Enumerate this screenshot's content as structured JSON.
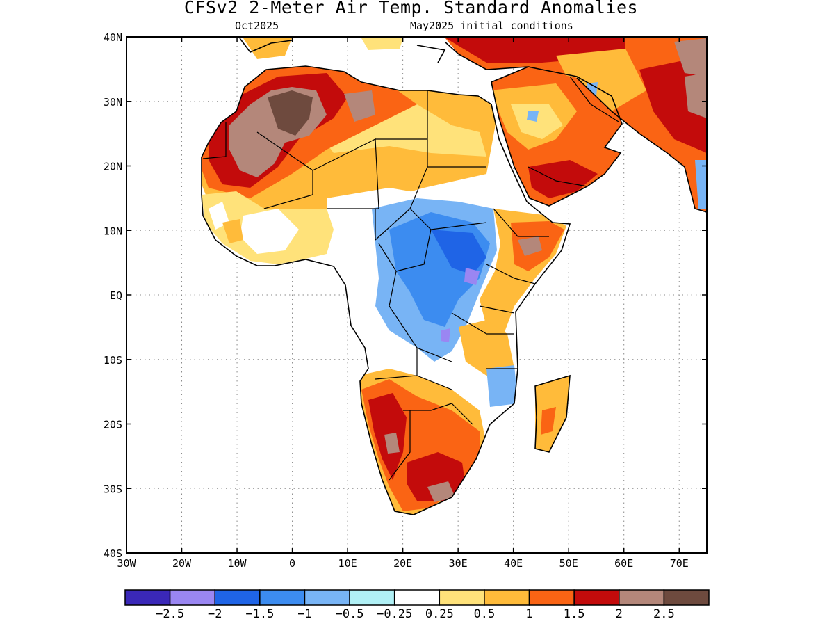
{
  "header": {
    "title": "CFSv2 2-Meter Air Temp. Standard Anomalies",
    "valid_month": "Oct2025",
    "initial_conditions": "May2025 initial conditions"
  },
  "map": {
    "region": "Africa",
    "lon_range": [
      -30,
      75
    ],
    "lat_range": [
      -40,
      40
    ],
    "lon_ticks": [
      {
        "value": -30,
        "label": "30W"
      },
      {
        "value": -20,
        "label": "20W"
      },
      {
        "value": -10,
        "label": "10W"
      },
      {
        "value": 0,
        "label": "0"
      },
      {
        "value": 10,
        "label": "10E"
      },
      {
        "value": 20,
        "label": "20E"
      },
      {
        "value": 30,
        "label": "30E"
      },
      {
        "value": 40,
        "label": "40E"
      },
      {
        "value": 50,
        "label": "50E"
      },
      {
        "value": 60,
        "label": "60E"
      },
      {
        "value": 70,
        "label": "70E"
      }
    ],
    "lat_ticks": [
      {
        "value": 40,
        "label": "40N"
      },
      {
        "value": 30,
        "label": "30N"
      },
      {
        "value": 20,
        "label": "20N"
      },
      {
        "value": 10,
        "label": "10N"
      },
      {
        "value": 0,
        "label": "EQ"
      },
      {
        "value": -10,
        "label": "10S"
      },
      {
        "value": -20,
        "label": "20S"
      },
      {
        "value": -30,
        "label": "30S"
      },
      {
        "value": -40,
        "label": "40S"
      }
    ],
    "grid": true
  },
  "legend": {
    "colors": [
      "#3a28b8",
      "#9a86f2",
      "#1f64e6",
      "#3c8cf0",
      "#78b4f5",
      "#b0f0f5",
      "#ffffff",
      "#ffe27a",
      "#ffbb3a",
      "#fa6414",
      "#c30b0b",
      "#b4877a",
      "#6e4a3e"
    ],
    "labels": [
      "-2.5",
      "-2",
      "-1.5",
      "-1",
      "-0.5",
      "-0.25",
      "0.25",
      "0.5",
      "1",
      "1.5",
      "2",
      "2.5"
    ]
  }
}
